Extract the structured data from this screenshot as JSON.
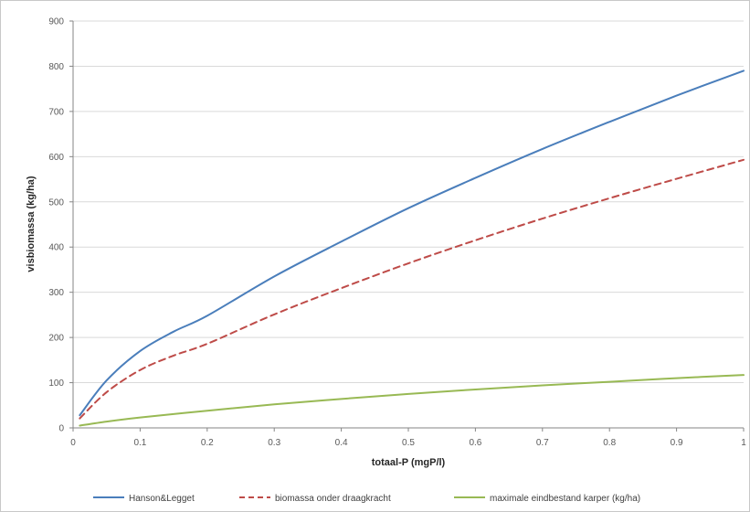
{
  "chart_data": {
    "type": "line",
    "xlabel": "totaal-P  (mgP/l)",
    "ylabel": "visbiomassa  (kg/ha)",
    "xlim": [
      0,
      1
    ],
    "ylim": [
      0,
      900
    ],
    "xticks": [
      "0",
      "0.1",
      "0.2",
      "0.3",
      "0.4",
      "0.5",
      "0.6",
      "0.7",
      "0.8",
      "0.9",
      "1"
    ],
    "yticks": [
      "0",
      "100",
      "200",
      "300",
      "400",
      "500",
      "600",
      "700",
      "800",
      "900"
    ],
    "grid": "horizontal",
    "legend_position": "bottom",
    "series": [
      {
        "name": "Hanson&Legget",
        "color": "#4a7ebb",
        "style": "solid",
        "x": [
          0.01,
          0.05,
          0.1,
          0.15,
          0.2,
          0.3,
          0.4,
          0.5,
          0.6,
          0.7,
          0.8,
          0.9,
          1.0
        ],
        "y": [
          28,
          105,
          170,
          213,
          248,
          335,
          412,
          486,
          553,
          617,
          677,
          735,
          790
        ]
      },
      {
        "name": "biomassa onder draagkracht",
        "color": "#be4b48",
        "style": "dashed",
        "x": [
          0.01,
          0.05,
          0.1,
          0.15,
          0.2,
          0.3,
          0.4,
          0.5,
          0.6,
          0.7,
          0.8,
          0.9,
          1.0
        ],
        "y": [
          21,
          79,
          128,
          160,
          186,
          251,
          309,
          364,
          415,
          463,
          508,
          551,
          593
        ]
      },
      {
        "name": "maximale eindbestand karper (kg/ha)",
        "color": "#98b954",
        "style": "solid",
        "x": [
          0.01,
          0.05,
          0.1,
          0.2,
          0.3,
          0.4,
          0.5,
          0.6,
          0.7,
          0.8,
          0.9,
          1.0
        ],
        "y": [
          5,
          14,
          23,
          38,
          52,
          64,
          75,
          85,
          94,
          102,
          110,
          117
        ]
      }
    ]
  }
}
